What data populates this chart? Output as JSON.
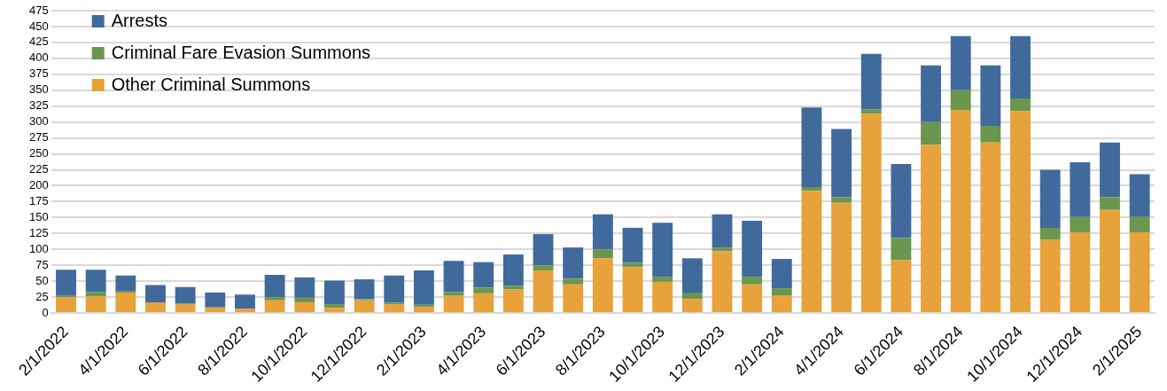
{
  "chart_data": {
    "type": "bar",
    "stacked": true,
    "legend": "top left",
    "grid": "y",
    "categories": [
      "2/1/2022",
      null,
      "4/1/2022",
      null,
      "6/1/2022",
      null,
      "8/1/2022",
      null,
      "10/1/2022",
      null,
      "12/1/2022",
      null,
      "2/1/2023",
      null,
      "4/1/2023",
      null,
      "6/1/2023",
      null,
      "8/1/2023",
      null,
      "10/1/2023",
      null,
      "12/1/2023",
      null,
      "2/1/2024",
      null,
      "4/1/2024",
      null,
      "6/1/2024",
      null,
      "8/1/2024",
      null,
      "10/1/2024",
      null,
      "12/1/2024",
      null,
      "2/1/2025"
    ],
    "ylim": [
      0,
      475
    ],
    "yticks": [
      0,
      25,
      50,
      75,
      100,
      125,
      150,
      175,
      200,
      225,
      250,
      275,
      300,
      325,
      350,
      375,
      400,
      425,
      450,
      475
    ],
    "series": [
      {
        "name": "Other Criminal Summons",
        "color": "#e7a23c",
        "values": [
          25,
          26,
          32,
          17,
          14,
          9,
          7,
          20,
          17,
          8,
          20,
          14,
          10,
          27,
          31,
          37,
          67,
          45,
          86,
          72,
          49,
          22,
          97,
          45,
          28,
          192,
          173,
          313,
          83,
          264,
          319,
          268,
          317,
          115,
          127,
          162,
          127
        ]
      },
      {
        "name": "Criminal Fare Evasion Summons",
        "color": "#6a964e",
        "values": [
          2,
          7,
          2,
          0,
          1,
          0,
          0,
          5,
          7,
          6,
          2,
          2,
          3,
          6,
          9,
          6,
          8,
          9,
          14,
          7,
          8,
          9,
          6,
          12,
          11,
          6,
          9,
          7,
          35,
          36,
          31,
          26,
          20,
          19,
          24,
          20,
          24
        ]
      },
      {
        "name": "Arrests",
        "color": "#416a9c",
        "values": [
          41,
          35,
          25,
          27,
          26,
          23,
          22,
          35,
          32,
          37,
          31,
          43,
          54,
          49,
          40,
          49,
          49,
          49,
          55,
          55,
          85,
          55,
          52,
          88,
          46,
          125,
          107,
          87,
          116,
          89,
          85,
          95,
          98,
          91,
          86,
          86,
          67
        ]
      }
    ]
  }
}
